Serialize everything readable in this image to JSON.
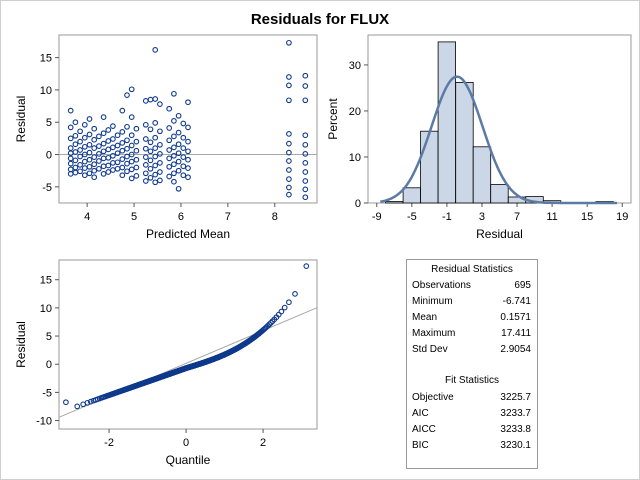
{
  "title": "Residuals for FLUX",
  "chart_data": [
    {
      "type": "scatter",
      "name": "residual-by-predicted",
      "xlabel": "Predicted Mean",
      "ylabel": "Residual",
      "xlim": [
        3.4,
        8.9
      ],
      "ylim": [
        -7.5,
        18.5
      ],
      "xticks": [
        "4",
        "5",
        "6",
        "7",
        "8"
      ],
      "yticks": [
        "-5",
        "0",
        "5",
        "10",
        "15"
      ],
      "reference_line_y": 0,
      "grid": false,
      "points": [
        [
          3.65,
          6.8
        ],
        [
          3.65,
          4.2
        ],
        [
          3.65,
          2.5
        ],
        [
          3.65,
          1.0
        ],
        [
          3.65,
          0.2
        ],
        [
          3.65,
          -0.6
        ],
        [
          3.65,
          -1.4
        ],
        [
          3.65,
          -2.3
        ],
        [
          3.65,
          -3.0
        ],
        [
          3.75,
          5.0
        ],
        [
          3.75,
          2.9
        ],
        [
          3.75,
          1.6
        ],
        [
          3.75,
          0.4
        ],
        [
          3.75,
          -0.9
        ],
        [
          3.75,
          -2.0
        ],
        [
          3.75,
          -2.8
        ],
        [
          3.85,
          3.6
        ],
        [
          3.85,
          2.0
        ],
        [
          3.85,
          0.7
        ],
        [
          3.85,
          -0.3
        ],
        [
          3.85,
          -1.6
        ],
        [
          3.85,
          -2.6
        ],
        [
          3.95,
          4.6
        ],
        [
          3.95,
          2.6
        ],
        [
          3.95,
          1.2
        ],
        [
          3.95,
          0.0
        ],
        [
          3.95,
          -1.1
        ],
        [
          3.95,
          -2.1
        ],
        [
          3.95,
          -3.2
        ],
        [
          4.05,
          5.5
        ],
        [
          4.05,
          3.1
        ],
        [
          4.05,
          1.5
        ],
        [
          4.05,
          0.3
        ],
        [
          4.05,
          -0.8
        ],
        [
          4.05,
          -1.9
        ],
        [
          4.05,
          -2.9
        ],
        [
          4.15,
          4.0
        ],
        [
          4.15,
          2.3
        ],
        [
          4.15,
          1.0
        ],
        [
          4.15,
          -0.4
        ],
        [
          4.15,
          -1.5
        ],
        [
          4.15,
          -2.5
        ],
        [
          4.15,
          -3.5
        ],
        [
          4.25,
          2.8
        ],
        [
          4.25,
          1.3
        ],
        [
          4.25,
          0.1
        ],
        [
          4.25,
          -1.0
        ],
        [
          4.25,
          -2.2
        ],
        [
          4.35,
          5.8
        ],
        [
          4.35,
          3.3
        ],
        [
          4.35,
          1.7
        ],
        [
          4.35,
          0.5
        ],
        [
          4.35,
          -0.6
        ],
        [
          4.35,
          -1.8
        ],
        [
          4.35,
          -3.0
        ],
        [
          4.45,
          3.8
        ],
        [
          4.45,
          2.1
        ],
        [
          4.45,
          0.8
        ],
        [
          4.45,
          -0.5
        ],
        [
          4.45,
          -1.7
        ],
        [
          4.45,
          -2.7
        ],
        [
          4.55,
          4.4
        ],
        [
          4.55,
          2.4
        ],
        [
          4.55,
          1.1
        ],
        [
          4.55,
          -0.2
        ],
        [
          4.55,
          -1.3
        ],
        [
          4.55,
          -2.4
        ],
        [
          4.65,
          3.0
        ],
        [
          4.65,
          1.4
        ],
        [
          4.65,
          0.2
        ],
        [
          4.65,
          -1.2
        ],
        [
          4.65,
          -2.2
        ],
        [
          4.75,
          6.8
        ],
        [
          4.75,
          3.5
        ],
        [
          4.75,
          1.8
        ],
        [
          4.75,
          0.6
        ],
        [
          4.75,
          -0.7
        ],
        [
          4.75,
          -2.0
        ],
        [
          4.75,
          -3.2
        ],
        [
          4.85,
          9.2
        ],
        [
          4.85,
          4.3
        ],
        [
          4.85,
          2.2
        ],
        [
          4.85,
          0.9
        ],
        [
          4.85,
          -0.3
        ],
        [
          4.85,
          -1.4
        ],
        [
          4.85,
          -2.6
        ],
        [
          4.95,
          10.1
        ],
        [
          4.95,
          5.8
        ],
        [
          4.95,
          3.0
        ],
        [
          4.95,
          1.4
        ],
        [
          4.95,
          0.0
        ],
        [
          4.95,
          -1.1
        ],
        [
          4.95,
          -2.3
        ],
        [
          4.95,
          -3.7
        ],
        [
          5.05,
          4.0
        ],
        [
          5.05,
          2.0
        ],
        [
          5.05,
          0.6
        ],
        [
          5.05,
          -0.8
        ],
        [
          5.05,
          -2.0
        ],
        [
          5.05,
          -3.3
        ],
        [
          5.25,
          8.3
        ],
        [
          5.25,
          4.6
        ],
        [
          5.25,
          2.4
        ],
        [
          5.25,
          0.9
        ],
        [
          5.25,
          -0.4
        ],
        [
          5.25,
          -1.6
        ],
        [
          5.25,
          -2.9
        ],
        [
          5.25,
          -4.1
        ],
        [
          5.35,
          8.5
        ],
        [
          5.35,
          3.9
        ],
        [
          5.35,
          1.9
        ],
        [
          5.35,
          0.5
        ],
        [
          5.35,
          -0.9
        ],
        [
          5.35,
          -2.2
        ],
        [
          5.35,
          -3.6
        ],
        [
          5.45,
          16.2
        ],
        [
          5.45,
          8.6
        ],
        [
          5.45,
          4.9
        ],
        [
          5.45,
          2.6
        ],
        [
          5.45,
          1.0
        ],
        [
          5.45,
          -0.3
        ],
        [
          5.45,
          -1.7
        ],
        [
          5.45,
          -3.1
        ],
        [
          5.45,
          -4.3
        ],
        [
          5.55,
          7.8
        ],
        [
          5.55,
          3.6
        ],
        [
          5.55,
          1.5
        ],
        [
          5.55,
          0.1
        ],
        [
          5.55,
          -1.3
        ],
        [
          5.55,
          -2.7
        ],
        [
          5.55,
          -4.0
        ],
        [
          5.75,
          7.1
        ],
        [
          5.75,
          4.1
        ],
        [
          5.75,
          2.2
        ],
        [
          5.75,
          0.7
        ],
        [
          5.75,
          -0.6
        ],
        [
          5.75,
          -1.9
        ],
        [
          5.75,
          -3.4
        ],
        [
          5.85,
          9.4
        ],
        [
          5.85,
          5.2
        ],
        [
          5.85,
          2.8
        ],
        [
          5.85,
          1.1
        ],
        [
          5.85,
          -0.2
        ],
        [
          5.85,
          -1.5
        ],
        [
          5.85,
          -2.9
        ],
        [
          5.85,
          -4.2
        ],
        [
          5.95,
          6.0
        ],
        [
          5.95,
          3.4
        ],
        [
          5.95,
          1.6
        ],
        [
          5.95,
          0.2
        ],
        [
          5.95,
          -1.1
        ],
        [
          5.95,
          -2.5
        ],
        [
          5.95,
          -5.3
        ],
        [
          6.05,
          4.8
        ],
        [
          6.05,
          2.6
        ],
        [
          6.05,
          1.0
        ],
        [
          6.05,
          -0.4
        ],
        [
          6.05,
          -1.8
        ],
        [
          6.05,
          -3.2
        ],
        [
          6.15,
          8.1
        ],
        [
          6.15,
          4.2
        ],
        [
          6.15,
          2.0
        ],
        [
          6.15,
          0.5
        ],
        [
          6.15,
          -0.8
        ],
        [
          6.15,
          -2.1
        ],
        [
          6.15,
          -3.5
        ],
        [
          8.3,
          17.3
        ],
        [
          8.3,
          12.0
        ],
        [
          8.3,
          10.7
        ],
        [
          8.3,
          8.4
        ],
        [
          8.3,
          3.2
        ],
        [
          8.3,
          1.7
        ],
        [
          8.3,
          0.3
        ],
        [
          8.3,
          -1.0
        ],
        [
          8.3,
          -2.4
        ],
        [
          8.3,
          -3.8
        ],
        [
          8.3,
          -5.1
        ],
        [
          8.3,
          -6.2
        ],
        [
          8.65,
          12.2
        ],
        [
          8.65,
          10.6
        ],
        [
          8.65,
          8.4
        ],
        [
          8.65,
          3.0
        ],
        [
          8.65,
          1.5
        ],
        [
          8.65,
          0.1
        ],
        [
          8.65,
          -1.3
        ],
        [
          8.65,
          -2.7
        ],
        [
          8.65,
          -4.1
        ],
        [
          8.65,
          -5.4
        ],
        [
          8.65,
          -6.6
        ]
      ]
    },
    {
      "type": "bar",
      "name": "residual-histogram",
      "xlabel": "Residual",
      "ylabel": "Percent",
      "xlim": [
        -10,
        20
      ],
      "ylim": [
        0,
        36.5
      ],
      "xticks": [
        "-9",
        "-5",
        "-1",
        "3",
        "7",
        "11",
        "15",
        "19"
      ],
      "yticks": [
        "0",
        "10",
        "20",
        "30"
      ],
      "bin_width": 2,
      "bin_centers": [
        -7,
        -5,
        -3,
        -1,
        1,
        3,
        5,
        7,
        9,
        11,
        13,
        15,
        17
      ],
      "values": [
        0.3,
        3.3,
        15.6,
        35.0,
        26.2,
        12.2,
        4.0,
        1.3,
        1.4,
        0.5,
        0,
        0,
        0.3
      ],
      "density_curve": {
        "type": "normal",
        "mean": 0.1571,
        "sd": 2.9054
      }
    },
    {
      "type": "scatter",
      "name": "qq-plot",
      "xlabel": "Quantile",
      "ylabel": "Residual",
      "xlim": [
        -3.3,
        3.4
      ],
      "ylim": [
        -11.5,
        18.5
      ],
      "xticks": [
        "-2",
        "0",
        "2"
      ],
      "yticks": [
        "-10",
        "-5",
        "0",
        "5",
        "10",
        "15"
      ],
      "reference_line": {
        "intercept": 0.1571,
        "slope": 2.9054
      },
      "n_points": 695
    }
  ],
  "stats": {
    "residual_title": "Residual Statistics",
    "residual_rows": [
      {
        "label": "Observations",
        "value": "695"
      },
      {
        "label": "Minimum",
        "value": "-6.741"
      },
      {
        "label": "Mean",
        "value": "0.1571"
      },
      {
        "label": "Maximum",
        "value": "17.411"
      },
      {
        "label": "Std Dev",
        "value": "2.9054"
      }
    ],
    "fit_title": "Fit Statistics",
    "fit_rows": [
      {
        "label": "Objective",
        "value": "3225.7"
      },
      {
        "label": "AIC",
        "value": "3233.7"
      },
      {
        "label": "AICC",
        "value": "3233.8"
      },
      {
        "label": "BIC",
        "value": "3230.1"
      }
    ]
  },
  "colors": {
    "marker": "#0f3a8c",
    "bar_fill": "#cbd6e6",
    "curve": "#5b7aa5",
    "ref_line": "#a8a8a8",
    "frame": "#9a9a9a"
  }
}
